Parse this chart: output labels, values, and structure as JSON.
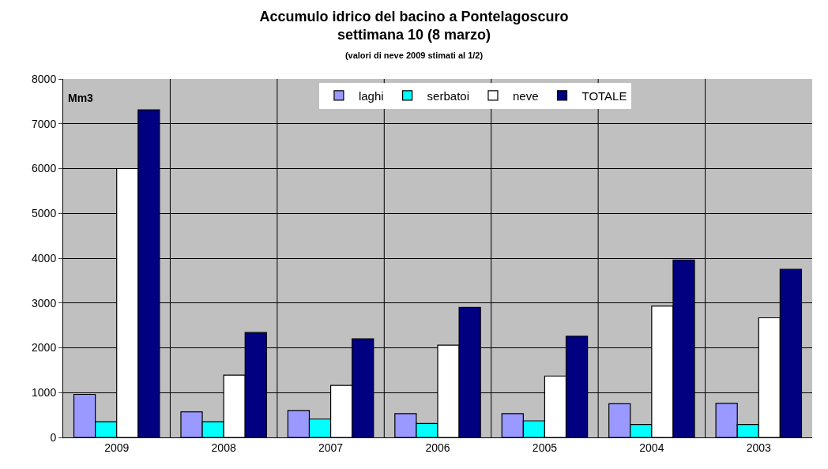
{
  "chart_data": {
    "type": "bar",
    "title": "Accumulo idrico del bacino a Pontelagoscuro\nsettimana 10 (8 marzo)",
    "subtitle": "(valori di neve 2009 stimati al 1/2)",
    "ylabel": "Mm3",
    "categories": [
      "2009",
      "2008",
      "2007",
      "2006",
      "2005",
      "2004",
      "2003"
    ],
    "series": [
      {
        "name": "laghi",
        "color": "#9999ff",
        "values": [
          960,
          570,
          600,
          530,
          530,
          750,
          760
        ]
      },
      {
        "name": "serbatoi",
        "color": "#00ffff",
        "values": [
          350,
          350,
          410,
          310,
          370,
          290,
          290
        ]
      },
      {
        "name": "neve",
        "color": "#ffffff",
        "values": [
          6000,
          1390,
          1160,
          2060,
          1370,
          2930,
          2670
        ]
      },
      {
        "name": "TOTALE",
        "color": "#000080",
        "values": [
          7310,
          2340,
          2200,
          2900,
          2260,
          3960,
          3750
        ]
      }
    ],
    "ylim": [
      0,
      8000
    ],
    "yticks": [
      0,
      1000,
      2000,
      3000,
      4000,
      5000,
      6000,
      7000,
      8000
    ],
    "grid": true,
    "legend": "top"
  }
}
